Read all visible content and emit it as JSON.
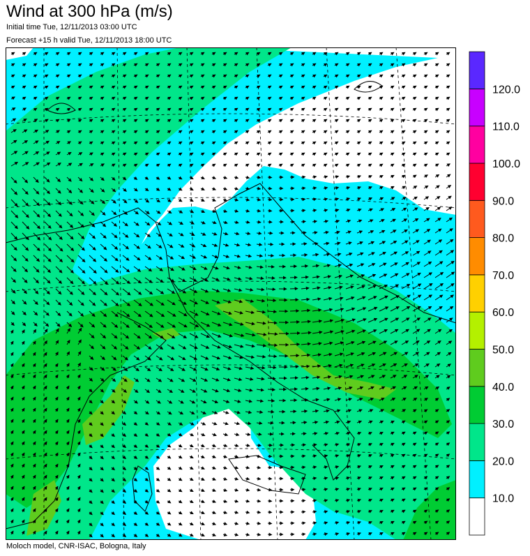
{
  "title": "Wind at 300 hPa (m/s)",
  "initial_time": "Initial time  Tue, 12/11/2013 03:00 UTC",
  "forecast": "Forecast +15 h valid  Tue, 12/11/2013 18:00 UTC",
  "footer": "Moloch model, CNR-ISAC, Bologna, Italy",
  "colors": {
    "c0": "#ffffff",
    "c10": "#00f0ff",
    "c20": "#00e68a",
    "c30": "#00cc33",
    "c40": "#5fcc1e",
    "c50": "#b4f000",
    "c60": "#ffd000",
    "c70": "#ff8c00",
    "c80": "#ff5a1e",
    "c90": "#ff0030",
    "c100": "#ff00a0",
    "c110": "#c800ff",
    "c120": "#5a28ff"
  },
  "legend": {
    "labels": [
      "10.0",
      "20.0",
      "30.0",
      "40.0",
      "50.0",
      "60.0",
      "70.0",
      "80.0",
      "90.0",
      "100.0",
      "110.0",
      "120.0"
    ]
  }
}
